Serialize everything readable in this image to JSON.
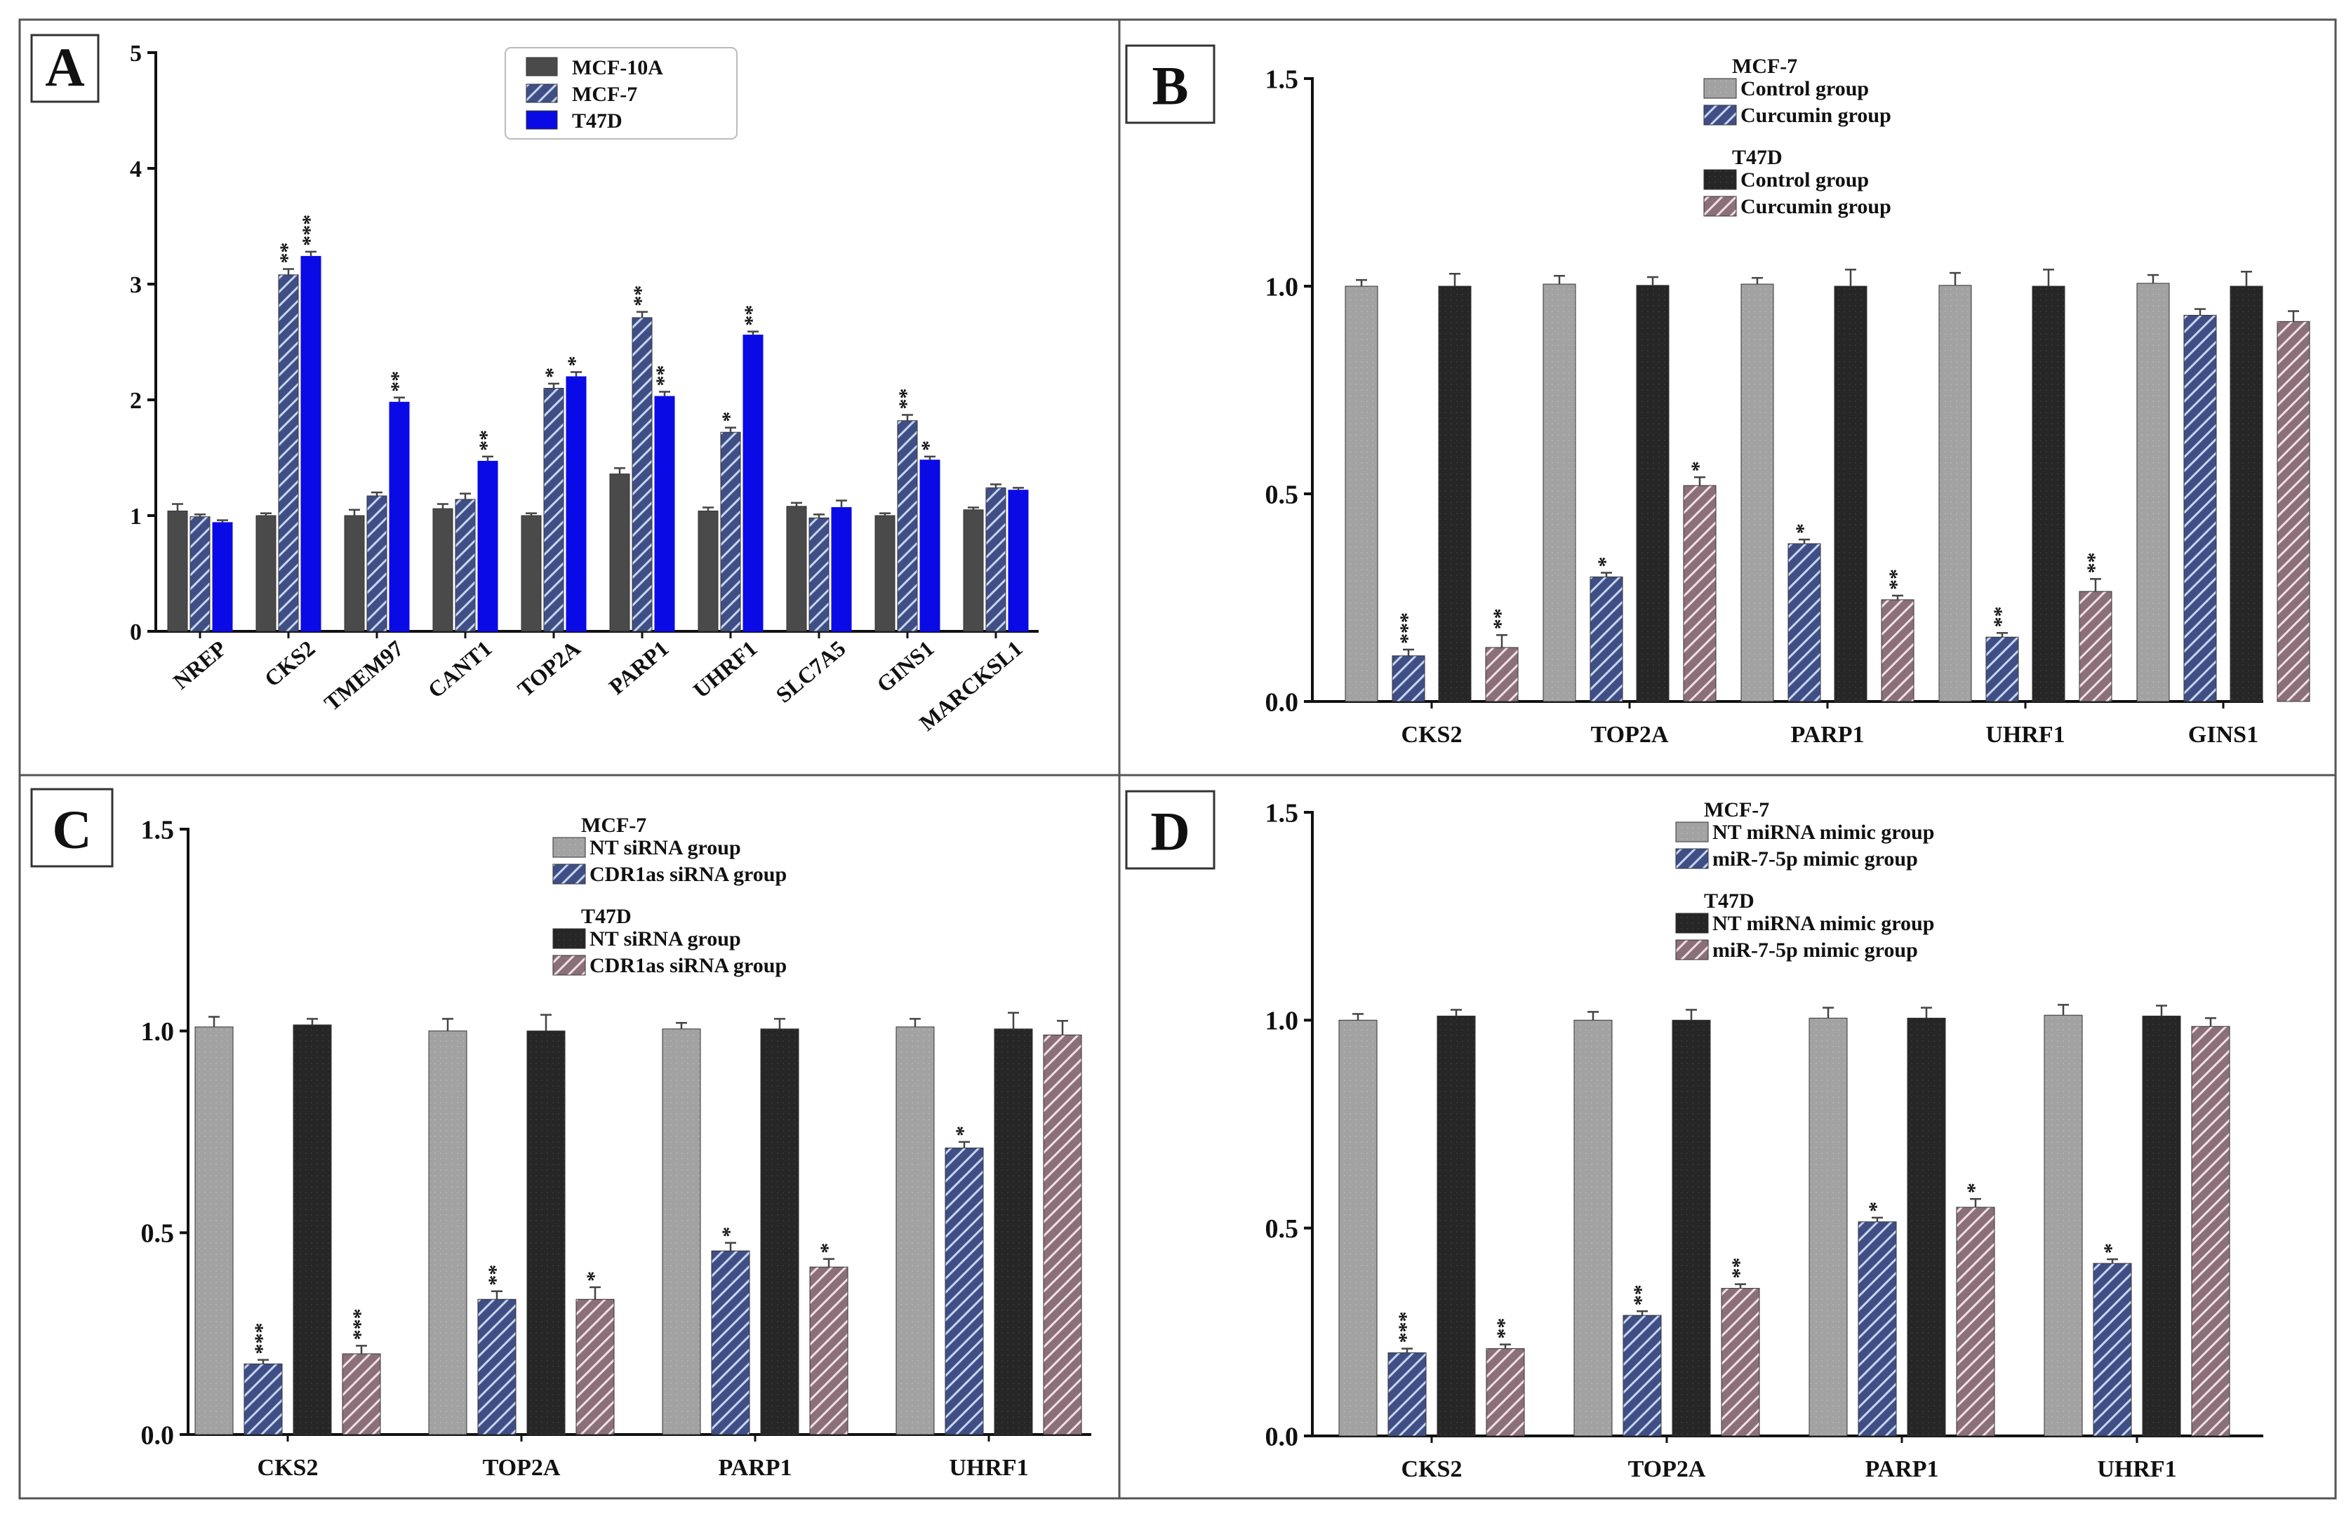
{
  "colors": {
    "mcf10a": "#4a4a4a",
    "blue_hatch_bg": "#3f4f86",
    "blue_hatch_line": "#c7d4ef",
    "t47d_solid": "#0a0ae6",
    "gray": "#a2a2a2",
    "dark": "#262626",
    "pink_hatch_bg": "#8b6f79",
    "pink_hatch_line": "#efe0e6",
    "axis": "#111111",
    "frame": "#555555"
  },
  "chart_data": [
    {
      "type": "bar",
      "panel": "A",
      "categories": [
        "NREP",
        "CKS2",
        "TMEM97",
        "CANT1",
        "TOP2A",
        "PARP1",
        "UHRF1",
        "SLC7A5",
        "GINS1",
        "MARCKSL1"
      ],
      "series": [
        {
          "name": "MCF-10A",
          "style": "mcf10a",
          "values": [
            1.04,
            1.0,
            1.0,
            1.06,
            1.0,
            1.36,
            1.04,
            1.08,
            1.0,
            1.05
          ],
          "errors": [
            0.06,
            0.02,
            0.05,
            0.04,
            0.02,
            0.05,
            0.03,
            0.03,
            0.02,
            0.02
          ],
          "sig": [
            "",
            "",
            "",
            "",
            "",
            "",
            "",
            "",
            "",
            ""
          ]
        },
        {
          "name": "MCF-7",
          "style": "blue_hatch",
          "values": [
            0.99,
            3.08,
            1.17,
            1.14,
            2.1,
            2.71,
            1.72,
            0.98,
            1.82,
            1.24
          ],
          "errors": [
            0.02,
            0.05,
            0.03,
            0.05,
            0.04,
            0.05,
            0.04,
            0.03,
            0.05,
            0.03
          ],
          "sig": [
            "",
            "**",
            "",
            "",
            "*",
            "**",
            "*",
            "",
            "**",
            ""
          ]
        },
        {
          "name": "T47D",
          "style": "t47d_solid",
          "values": [
            0.94,
            3.24,
            1.98,
            1.47,
            2.2,
            2.03,
            2.56,
            1.07,
            1.48,
            1.22
          ],
          "errors": [
            0.02,
            0.04,
            0.04,
            0.04,
            0.04,
            0.04,
            0.03,
            0.06,
            0.03,
            0.02
          ],
          "sig": [
            "",
            "***",
            "**",
            "**",
            "*",
            "**",
            "**",
            "",
            "*",
            ""
          ]
        }
      ],
      "ylim": [
        0,
        5
      ],
      "yticks": [
        "0",
        "1",
        "2",
        "3",
        "4",
        "5"
      ],
      "legend": {
        "position": "top-center",
        "entries": [
          "MCF-10A",
          "MCF-7",
          "T47D"
        ]
      },
      "title": "",
      "xlabel": "",
      "ylabel": ""
    },
    {
      "type": "bar",
      "panel": "B",
      "categories": [
        "CKS2",
        "TOP2A",
        "PARP1",
        "UHRF1",
        "GINS1"
      ],
      "series": [
        {
          "name": "MCF-7 Control group",
          "style": "gray",
          "values": [
            1.0,
            1.005,
            1.005,
            1.002,
            1.007
          ],
          "errors": [
            0.015,
            0.02,
            0.015,
            0.03,
            0.02
          ],
          "sig": [
            "",
            "",
            "",
            "",
            ""
          ]
        },
        {
          "name": "MCF-7 Curcumin group",
          "style": "blue_hatch",
          "values": [
            0.11,
            0.3,
            0.38,
            0.155,
            0.93
          ],
          "errors": [
            0.015,
            0.01,
            0.01,
            0.01,
            0.015
          ],
          "sig": [
            "***",
            "*",
            "*",
            "**",
            ""
          ]
        },
        {
          "name": "T47D Control group",
          "style": "dark",
          "values": [
            1.0,
            1.002,
            1.0,
            1.0,
            1.0
          ],
          "errors": [
            0.03,
            0.02,
            0.04,
            0.04,
            0.035
          ],
          "sig": [
            "",
            "",
            "",
            "",
            ""
          ]
        },
        {
          "name": "T47D Curcumin group",
          "style": "pink_hatch",
          "values": [
            0.13,
            0.52,
            0.245,
            0.265,
            0.915
          ],
          "errors": [
            0.03,
            0.02,
            0.01,
            0.03,
            0.025
          ],
          "sig": [
            "**",
            "*",
            "**",
            "**",
            ""
          ]
        }
      ],
      "ylim": [
        0,
        1.5
      ],
      "yticks": [
        "0.0",
        "0.5",
        "1.0",
        "1.5"
      ],
      "legend": {
        "position": "top-center",
        "group1_title": "MCF-7",
        "group1_entries": [
          "Control group",
          "Curcumin group"
        ],
        "group2_title": "T47D",
        "group2_entries": [
          "Control group",
          "Curcumin group"
        ]
      },
      "title": "",
      "xlabel": "",
      "ylabel": ""
    },
    {
      "type": "bar",
      "panel": "C",
      "categories": [
        "CKS2",
        "TOP2A",
        "PARP1",
        "UHRF1"
      ],
      "series": [
        {
          "name": "MCF-7 NT siRNA group",
          "style": "gray",
          "values": [
            1.01,
            1.0,
            1.005,
            1.01
          ],
          "errors": [
            0.025,
            0.03,
            0.015,
            0.02
          ],
          "sig": [
            "",
            "",
            "",
            ""
          ]
        },
        {
          "name": "MCF-7 CDR1as siRNA group",
          "style": "blue_hatch",
          "values": [
            0.175,
            0.335,
            0.455,
            0.71
          ],
          "errors": [
            0.01,
            0.02,
            0.02,
            0.015
          ],
          "sig": [
            "***",
            "**",
            "*",
            "*"
          ]
        },
        {
          "name": "T47D NT siRNA group",
          "style": "dark",
          "values": [
            1.015,
            1.0,
            1.005,
            1.005
          ],
          "errors": [
            0.015,
            0.04,
            0.025,
            0.04
          ],
          "sig": [
            "",
            "",
            "",
            ""
          ]
        },
        {
          "name": "T47D CDR1as siRNA group",
          "style": "pink_hatch",
          "values": [
            0.2,
            0.335,
            0.415,
            0.99
          ],
          "errors": [
            0.02,
            0.03,
            0.02,
            0.035
          ],
          "sig": [
            "***",
            "*",
            "*",
            ""
          ]
        }
      ],
      "ylim": [
        0,
        1.5
      ],
      "yticks": [
        "0.0",
        "0.5",
        "1.0",
        "1.5"
      ],
      "legend": {
        "position": "top-center",
        "group1_title": "MCF-7",
        "group1_entries": [
          "NT siRNA group",
          "CDR1as siRNA group"
        ],
        "group2_title": "T47D",
        "group2_entries": [
          "NT siRNA group",
          "CDR1as siRNA group"
        ]
      },
      "title": "",
      "xlabel": "",
      "ylabel": ""
    },
    {
      "type": "bar",
      "panel": "D",
      "categories": [
        "CKS2",
        "TOP2A",
        "PARP1",
        "UHRF1"
      ],
      "series": [
        {
          "name": "MCF-7 NT miRNA mimic group",
          "style": "gray",
          "values": [
            1.0,
            1.0,
            1.005,
            1.012
          ],
          "errors": [
            0.015,
            0.02,
            0.025,
            0.025
          ],
          "sig": [
            "",
            "",
            "",
            ""
          ]
        },
        {
          "name": "MCF-7 miR-7-5p mimic group",
          "style": "blue_hatch",
          "values": [
            0.2,
            0.29,
            0.515,
            0.415
          ],
          "errors": [
            0.01,
            0.01,
            0.01,
            0.01
          ],
          "sig": [
            "***",
            "**",
            "*",
            "*"
          ]
        },
        {
          "name": "T47D NT miRNA mimic group",
          "style": "dark",
          "values": [
            1.01,
            1.0,
            1.005,
            1.01
          ],
          "errors": [
            0.015,
            0.025,
            0.025,
            0.025
          ],
          "sig": [
            "",
            "",
            "",
            ""
          ]
        },
        {
          "name": "T47D miR-7-5p mimic group",
          "style": "pink_hatch",
          "values": [
            0.21,
            0.355,
            0.55,
            0.985
          ],
          "errors": [
            0.01,
            0.01,
            0.02,
            0.02
          ],
          "sig": [
            "**",
            "**",
            "*",
            ""
          ]
        }
      ],
      "ylim": [
        0,
        1.5
      ],
      "yticks": [
        "0.0",
        "0.5",
        "1.0",
        "1.5"
      ],
      "legend": {
        "position": "top-center",
        "group1_title": "MCF-7",
        "group1_entries": [
          "NT miRNA mimic group",
          "miR-7-5p mimic group"
        ],
        "group2_title": "T47D",
        "group2_entries": [
          "NT miRNA mimic group",
          "miR-7-5p mimic group"
        ]
      },
      "title": "",
      "xlabel": "",
      "ylabel": ""
    }
  ],
  "panels": {
    "labels": [
      "A",
      "B",
      "C",
      "D"
    ]
  }
}
